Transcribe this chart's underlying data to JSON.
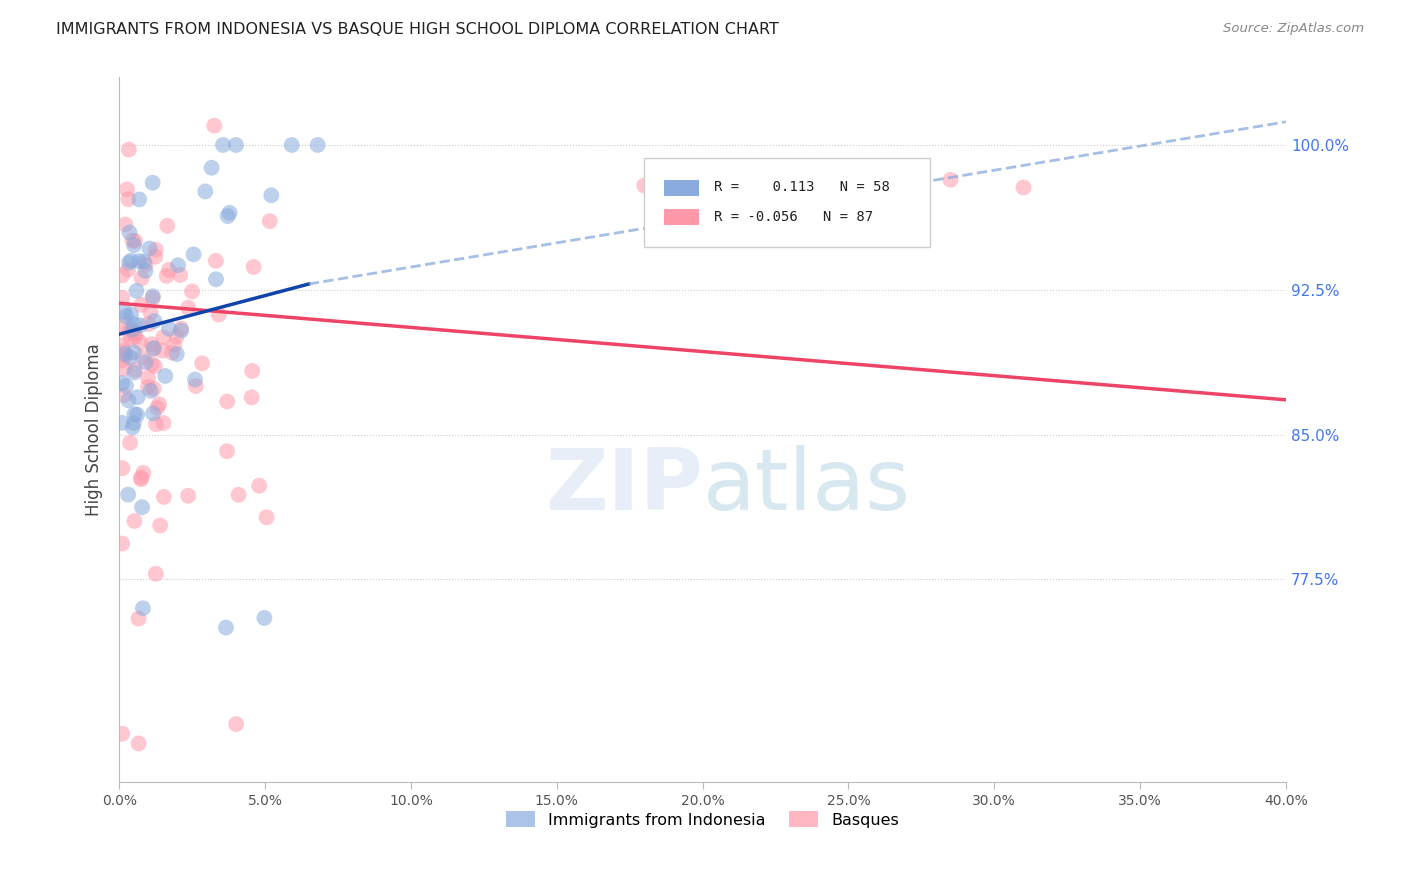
{
  "title": "IMMIGRANTS FROM INDONESIA VS BASQUE HIGH SCHOOL DIPLOMA CORRELATION CHART",
  "source": "Source: ZipAtlas.com",
  "ylabel": "High School Diploma",
  "yticks": [
    0.775,
    0.85,
    0.925,
    1.0
  ],
  "ytick_labels": [
    "77.5%",
    "85.0%",
    "92.5%",
    "100.0%"
  ],
  "xtick_labels": [
    "0.0%",
    "5.0%",
    "10.0%",
    "15.0%",
    "20.0%",
    "25.0%",
    "30.0%",
    "35.0%",
    "40.0%"
  ],
  "xmin": 0.0,
  "xmax": 0.4,
  "ymin": 0.67,
  "ymax": 1.035,
  "blue_color": "#88AADD",
  "pink_color": "#FF99AA",
  "blue_line_color": "#1144AA",
  "pink_line_color": "#EE4466",
  "blue_dashed_color": "#88AADD",
  "watermark_zip_color": "#E8EEF8",
  "watermark_atlas_color": "#D8E8F0",
  "r_blue": 0.113,
  "n_blue": 58,
  "r_pink": -0.056,
  "n_pink": 87
}
